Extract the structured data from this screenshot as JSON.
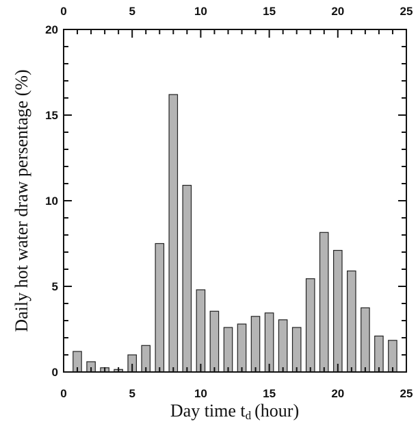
{
  "chart_data": {
    "type": "bar",
    "xlabel": "Day time t",
    "xlabel_subscript": "d",
    "xlabel_unit": "(hour)",
    "ylabel": "Daily  hot water  draw  persentage (%)",
    "xlim": [
      0,
      25
    ],
    "ylim": [
      0,
      20
    ],
    "x_ticks": [
      0,
      5,
      10,
      15,
      20,
      25
    ],
    "x_tick_labels": [
      "0",
      "5",
      "10",
      "15",
      "20",
      "25"
    ],
    "x_top_tick_labels": [
      "0",
      "5",
      "10",
      "15",
      "20",
      "25"
    ],
    "y_ticks": [
      0,
      5,
      10,
      15,
      20
    ],
    "y_tick_labels": [
      "0",
      "5",
      "10",
      "15",
      "20"
    ],
    "grid": false,
    "bar_color": "#b4b4b4",
    "x": [
      1,
      2,
      3,
      4,
      5,
      6,
      7,
      8,
      9,
      10,
      11,
      12,
      13,
      14,
      15,
      16,
      17,
      18,
      19,
      20,
      21,
      22,
      23,
      24
    ],
    "values": [
      1.2,
      0.6,
      0.25,
      0.15,
      1.0,
      1.55,
      7.5,
      16.2,
      10.9,
      4.8,
      3.55,
      2.6,
      2.8,
      3.25,
      3.45,
      3.05,
      2.6,
      5.45,
      8.15,
      7.1,
      5.9,
      3.75,
      2.1,
      1.85
    ]
  }
}
